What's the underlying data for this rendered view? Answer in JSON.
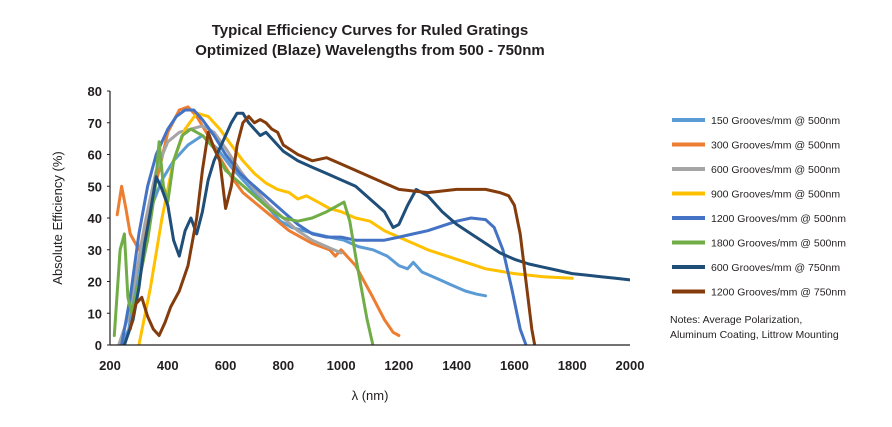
{
  "chart_data": {
    "type": "line",
    "title": "Typical Efficiency Curves for Ruled Gratings",
    "subtitle": "Optimized (Blaze) Wavelengths from 500 - 750nm",
    "xlabel": "λ (nm)",
    "ylabel": "Absolute Efficiency (%)",
    "xlim": [
      200,
      2000
    ],
    "ylim": [
      0,
      80
    ],
    "xticks": [
      200,
      400,
      600,
      800,
      1000,
      1200,
      1400,
      1600,
      1800,
      2000
    ],
    "yticks": [
      0,
      10,
      20,
      30,
      40,
      50,
      60,
      70,
      80
    ],
    "grid": false,
    "legend_position": "right",
    "notes": [
      "Notes: Average Polarization,",
      "Aluminum Coating, Littrow Mounting"
    ],
    "series": [
      {
        "name": "150 Grooves/mm @ 500nm",
        "color": "#5b9bd5",
        "x": [
          240,
          265,
          290,
          320,
          350,
          380,
          420,
          470,
          520,
          570,
          620,
          680,
          740,
          790,
          830,
          870,
          910,
          960,
          1010,
          1060,
          1110,
          1160,
          1200,
          1230,
          1250,
          1280,
          1330,
          1380,
          1430,
          1470,
          1500
        ],
        "y": [
          0,
          5,
          20,
          35,
          45,
          52,
          58,
          63,
          66,
          62,
          56,
          50,
          44,
          39,
          37,
          36,
          35,
          34,
          33,
          31,
          30,
          28,
          25,
          24,
          26,
          23,
          21,
          19,
          17,
          16,
          15.5
        ]
      },
      {
        "name": "300 Grooves/mm @ 500nm",
        "color": "#ed7d31",
        "x": [
          225,
          240,
          255,
          270,
          300,
          320,
          340,
          370,
          400,
          440,
          470,
          500,
          540,
          580,
          620,
          660,
          700,
          740,
          780,
          820,
          860,
          900,
          930,
          960,
          980,
          1000,
          1020,
          1050,
          1080,
          1110,
          1150,
          1180,
          1200
        ],
        "y": [
          41,
          50,
          43,
          35,
          30,
          35,
          45,
          55,
          67,
          74,
          75,
          72,
          66,
          59,
          53,
          48,
          45,
          42,
          39,
          36,
          34,
          32,
          31,
          30,
          28,
          30,
          28,
          25,
          20,
          15,
          8,
          4,
          3
        ]
      },
      {
        "name": "600 Grooves/mm @ 500nm",
        "color": "#a5a5a5",
        "x": [
          230,
          260,
          290,
          320,
          360,
          400,
          440,
          480,
          520,
          560,
          600,
          650,
          700,
          750,
          800,
          850,
          900,
          950,
          1000
        ],
        "y": [
          0,
          8,
          22,
          38,
          55,
          64,
          67,
          68,
          69,
          67,
          62,
          55,
          49,
          44,
          40,
          36,
          33,
          31,
          29
        ]
      },
      {
        "name": "900 Grooves/mm @ 500nm",
        "color": "#ffc000",
        "x": [
          300,
          340,
          380,
          420,
          460,
          500,
          540,
          580,
          620,
          660,
          700,
          740,
          780,
          820,
          850,
          880,
          920,
          960,
          1000,
          1050,
          1100,
          1150,
          1200,
          1250,
          1300,
          1400,
          1500,
          1600,
          1700,
          1800
        ],
        "y": [
          0,
          18,
          40,
          58,
          68,
          73,
          72,
          68,
          63,
          58,
          54,
          51,
          49,
          48,
          46,
          47,
          45,
          43,
          42,
          40,
          39,
          36,
          34,
          32,
          30,
          27,
          24,
          22.5,
          21.5,
          21
        ]
      },
      {
        "name": "1200 Grooves/mm @ 500nm",
        "color": "#4472c4",
        "x": [
          240,
          270,
          300,
          330,
          360,
          400,
          430,
          460,
          490,
          520,
          560,
          600,
          650,
          700,
          750,
          800,
          850,
          900,
          950,
          1000,
          1050,
          1100,
          1150,
          1200,
          1250,
          1300,
          1350,
          1400,
          1450,
          1500,
          1530,
          1560,
          1590,
          1620,
          1640
        ],
        "y": [
          0,
          15,
          35,
          50,
          60,
          68,
          72,
          74,
          74,
          71,
          66,
          60,
          54,
          50,
          46,
          42,
          38,
          35,
          34,
          34,
          33,
          33,
          33,
          34,
          35,
          36,
          37.5,
          39,
          40,
          39.5,
          37,
          30,
          18,
          5,
          0
        ]
      },
      {
        "name": "1800 Grooves/mm @ 500nm",
        "color": "#70ad47",
        "x": [
          215,
          235,
          250,
          262,
          275,
          300,
          330,
          355,
          370,
          385,
          400,
          420,
          450,
          480,
          520,
          560,
          600,
          650,
          700,
          750,
          800,
          850,
          900,
          950,
          990,
          1010,
          1030,
          1050,
          1070,
          1090,
          1110
        ],
        "y": [
          3,
          30,
          35,
          15,
          10,
          20,
          33,
          48,
          64,
          50,
          45,
          58,
          66,
          68,
          66,
          62,
          55,
          51,
          47,
          43,
          40,
          39,
          40,
          42,
          44,
          45,
          39,
          28,
          18,
          8,
          0
        ]
      },
      {
        "name": "600 Grooves/mm @ 750nm",
        "color": "#1f4e79",
        "x": [
          250,
          280,
          300,
          320,
          340,
          360,
          380,
          400,
          420,
          440,
          460,
          480,
          500,
          520,
          540,
          560,
          580,
          600,
          620,
          640,
          660,
          680,
          700,
          720,
          740,
          760,
          780,
          800,
          850,
          900,
          950,
          1000,
          1050,
          1100,
          1150,
          1180,
          1200,
          1230,
          1260,
          1300,
          1350,
          1400,
          1450,
          1500,
          1550,
          1600,
          1650,
          1700,
          1750,
          1800,
          1850,
          1900,
          1950,
          2000
        ],
        "y": [
          0,
          8,
          18,
          32,
          42,
          53,
          49,
          44,
          33,
          28,
          36,
          40,
          35,
          42,
          52,
          58,
          62,
          66,
          70,
          73,
          73,
          70,
          68,
          66,
          67,
          65,
          63,
          61,
          58,
          56,
          54,
          52,
          50,
          46,
          42,
          37,
          38,
          44,
          49,
          47,
          42,
          38,
          35,
          32,
          29,
          27,
          25.5,
          24.5,
          23.5,
          22.5,
          22,
          21.5,
          21,
          20.5
        ]
      },
      {
        "name": "1200 Grooves/mm @ 750nm",
        "color": "#843c0c",
        "x": [
          270,
          290,
          310,
          330,
          350,
          370,
          390,
          410,
          440,
          470,
          500,
          520,
          540,
          560,
          580,
          600,
          620,
          640,
          660,
          680,
          700,
          720,
          740,
          760,
          780,
          800,
          850,
          900,
          950,
          1000,
          1050,
          1100,
          1150,
          1200,
          1250,
          1300,
          1350,
          1400,
          1450,
          1500,
          1550,
          1580,
          1600,
          1620,
          1640,
          1660,
          1670
        ],
        "y": [
          5,
          13,
          15,
          9,
          5,
          3,
          7,
          12,
          17,
          25,
          40,
          55,
          67,
          62,
          58,
          43,
          50,
          63,
          70,
          72,
          70,
          71,
          70,
          68,
          67,
          63,
          60,
          58,
          59,
          57,
          55,
          53,
          51,
          49,
          48.5,
          48,
          48.5,
          49,
          49,
          49,
          48,
          47,
          44,
          35,
          20,
          5,
          0
        ]
      }
    ]
  }
}
